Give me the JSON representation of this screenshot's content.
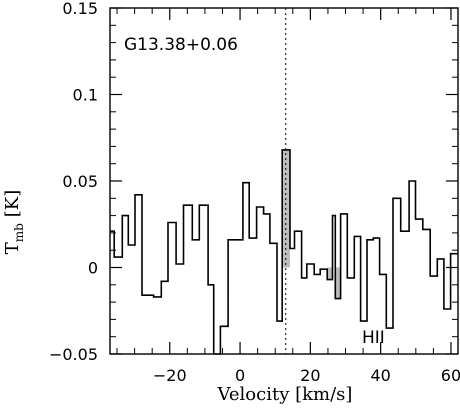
{
  "chart_data": {
    "type": "line",
    "step": true,
    "title": "G13.38+0.06",
    "xlabel": "Velocity [km/s]",
    "ylabel_main": "T",
    "ylabel_sub": "mb",
    "ylabel_unit": "[K]",
    "xlim": [
      -37,
      62
    ],
    "ylim": [
      -0.05,
      0.15
    ],
    "xticks": [
      -20,
      0,
      20,
      40,
      60
    ],
    "xtick_labels": [
      "−20",
      "0",
      "20",
      "40",
      "60"
    ],
    "yticks": [
      -0.05,
      0,
      0.05,
      0.1,
      0.15
    ],
    "ytick_labels": [
      "−0.05",
      "0",
      "0.05",
      "0.1",
      "0.15"
    ],
    "reference_line": {
      "x": 13.0,
      "style": "dotted"
    },
    "shaded_channels": [
      {
        "x0": 12.0,
        "x1": 14.2,
        "value": 0.068
      },
      {
        "x0": 24.8,
        "x1": 26.3,
        "value": -0.007
      },
      {
        "x0": 27.1,
        "x1": 28.6,
        "value": -0.018
      }
    ],
    "annotation": "HII",
    "series": [
      {
        "x": [
          -37.0,
          -35.8,
          -33.5,
          -31.8,
          -29.9,
          -27.9,
          -24.6,
          -22.4,
          -20.5,
          -18.2,
          -16.1,
          -13.6,
          -11.6,
          -9.1,
          -7.5,
          -5.6,
          -3.4,
          -1.3,
          0.8,
          2.6,
          4.7,
          6.7,
          8.5,
          10.5,
          12.0,
          14.2,
          15.5,
          17.5,
          19.0,
          21.1,
          22.8,
          24.8,
          26.3,
          27.1,
          28.6,
          30.5,
          32.5,
          34.3,
          36.1,
          37.9,
          39.7,
          41.6,
          43.5,
          45.7,
          48.1,
          49.9,
          52.0,
          54.1,
          56.1,
          58.0,
          59.9,
          62.0
        ],
        "y": [
          0.021,
          0.006,
          0.03,
          0.013,
          0.042,
          -0.016,
          -0.017,
          -0.008,
          0.026,
          0.002,
          0.036,
          0.016,
          0.036,
          -0.01,
          -0.05,
          -0.034,
          0.016,
          0.016,
          0.049,
          0.017,
          0.035,
          0.031,
          0.014,
          -0.031,
          0.068,
          0.011,
          0.021,
          -0.006,
          0.002,
          -0.004,
          -0.001,
          -0.007,
          0.03,
          -0.018,
          0.031,
          -0.006,
          0.018,
          -0.031,
          0.016,
          0.017,
          -0.004,
          -0.035,
          0.04,
          0.021,
          0.05,
          0.028,
          0.022,
          -0.005,
          0.005,
          -0.024,
          0.008,
          0.007
        ]
      }
    ]
  }
}
